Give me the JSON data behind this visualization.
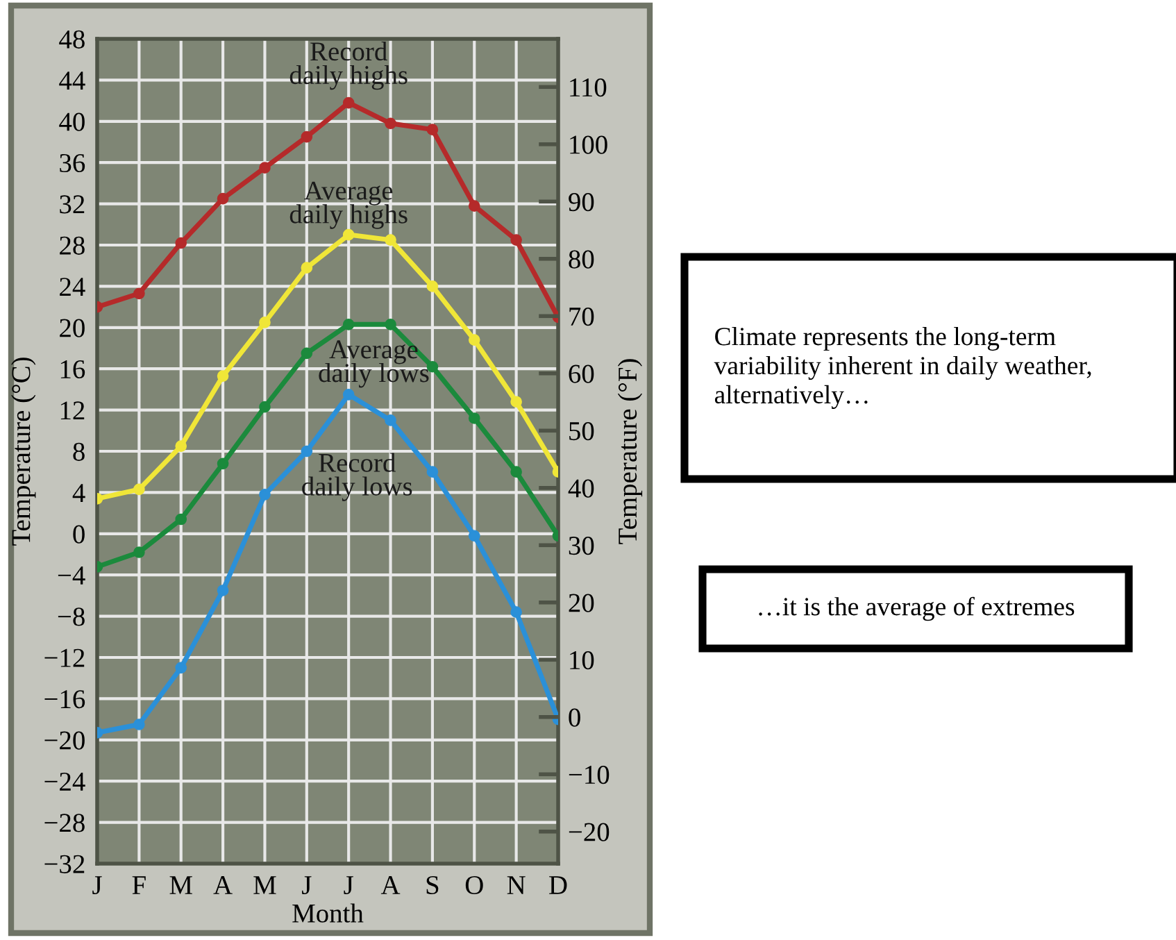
{
  "chart_data": {
    "type": "line",
    "xlabel": "Month",
    "ylabel": "Temperature (°C)",
    "y2label": "Temperature (°F)",
    "categories": [
      "J",
      "F",
      "M",
      "A",
      "M",
      "J",
      "J",
      "A",
      "S",
      "O",
      "N",
      "D"
    ],
    "series": [
      {
        "name": "Record\ndaily highs",
        "color": "#b52a2a",
        "values": [
          22,
          23.3,
          28.2,
          32.5,
          35.5,
          38.5,
          41.8,
          39.8,
          39.2,
          31.8,
          28.5,
          21
        ]
      },
      {
        "name": "Average\ndaily highs",
        "color": "#f0e638",
        "values": [
          3.4,
          4.3,
          8.5,
          15.3,
          20.5,
          25.8,
          29,
          28.5,
          24,
          18.8,
          12.8,
          6
        ]
      },
      {
        "name": "Average\ndaily lows",
        "color": "#1b8a3c",
        "values": [
          -3.2,
          -1.8,
          1.4,
          6.8,
          12.3,
          17.5,
          20.3,
          20.3,
          16.2,
          11.2,
          6,
          -0.2
        ]
      },
      {
        "name": "Record\ndaily lows",
        "color": "#2b90d8",
        "values": [
          -19.3,
          -18.5,
          -13,
          -5.5,
          3.8,
          8,
          13.5,
          11,
          6,
          -0.2,
          -7.6,
          -18
        ]
      }
    ],
    "ylim": [
      -32,
      48
    ],
    "yticks": [
      -32,
      -28,
      -24,
      -20,
      -16,
      -12,
      -8,
      -4,
      0,
      4,
      8,
      12,
      16,
      20,
      24,
      28,
      32,
      36,
      40,
      44,
      48
    ],
    "y2lim": [
      -25.6,
      118.4
    ],
    "y2ticks": [
      -20,
      -10,
      0,
      10,
      20,
      30,
      40,
      50,
      60,
      70,
      80,
      90,
      100,
      110
    ],
    "grid": true,
    "marker": "circle",
    "line_style": "solid",
    "legend": false,
    "annotations": [
      "Climate represents the long-term\nvariability inherent in daily weather,\nalternatively…",
      "…it is the average of extremes"
    ]
  }
}
